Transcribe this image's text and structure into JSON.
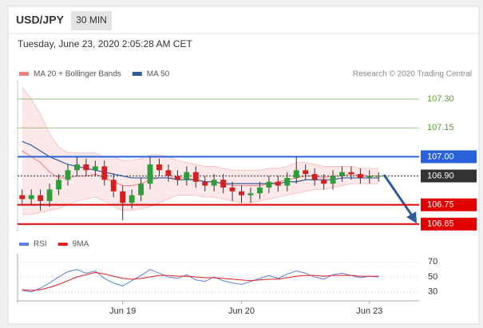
{
  "header": {
    "symbol": "USD/JPY",
    "timeframe": "30 MIN",
    "timestamp": "Tuesday, June 23, 2020 2:05:28 AM CET"
  },
  "chart_data": [
    {
      "type": "candlestick",
      "ylim": [
        106.62,
        107.4
      ],
      "up_color": "#2e9e3a",
      "down_color": "#d62020",
      "open": [
        106.8,
        106.78,
        106.8,
        106.77,
        106.83,
        106.88,
        106.93,
        106.96,
        106.93,
        106.95,
        106.88,
        106.82,
        106.76,
        106.8,
        106.86,
        106.96,
        106.93,
        106.9,
        106.88,
        106.92,
        106.87,
        106.85,
        106.88,
        106.84,
        106.82,
        106.8,
        106.81,
        106.84,
        106.87,
        106.85,
        106.89,
        106.93,
        106.91,
        106.88,
        106.86,
        106.9,
        106.92,
        106.91,
        106.89,
        106.9
      ],
      "high": [
        106.83,
        106.83,
        106.83,
        106.86,
        106.91,
        106.96,
        107.0,
        106.99,
        106.98,
        106.98,
        106.91,
        106.85,
        106.83,
        106.89,
        107.0,
        106.99,
        106.96,
        106.93,
        106.95,
        106.95,
        106.9,
        106.91,
        106.91,
        106.87,
        106.85,
        106.84,
        106.87,
        106.9,
        106.9,
        106.92,
        107.0,
        106.96,
        106.94,
        106.91,
        106.93,
        106.95,
        106.95,
        106.94,
        106.93,
        106.92
      ],
      "low": [
        106.75,
        106.75,
        106.72,
        106.74,
        106.8,
        106.85,
        106.9,
        106.9,
        106.9,
        106.85,
        106.79,
        106.67,
        106.73,
        106.77,
        106.83,
        106.9,
        106.87,
        106.85,
        106.85,
        106.84,
        106.82,
        106.82,
        106.81,
        106.77,
        106.76,
        106.76,
        106.78,
        106.81,
        106.82,
        106.82,
        106.86,
        106.88,
        106.85,
        106.83,
        106.83,
        106.87,
        106.88,
        106.86,
        106.86,
        106.87
      ],
      "close": [
        106.78,
        106.8,
        106.77,
        106.83,
        106.88,
        106.93,
        106.96,
        106.93,
        106.95,
        106.88,
        106.82,
        106.76,
        106.8,
        106.86,
        106.96,
        106.93,
        106.9,
        106.88,
        106.92,
        106.87,
        106.85,
        106.88,
        106.84,
        106.82,
        106.8,
        106.81,
        106.84,
        106.87,
        106.85,
        106.89,
        106.93,
        106.91,
        106.88,
        106.86,
        106.9,
        106.92,
        106.91,
        106.89,
        106.9,
        106.9
      ],
      "bands": {
        "name": "MA 20 + Bollinger Bands",
        "color": "#f08080",
        "upper": [
          107.36,
          107.3,
          107.22,
          107.12,
          107.05,
          107.02,
          107.02,
          107.02,
          107.02,
          107.0,
          107.0,
          106.98,
          106.98,
          106.99,
          107.01,
          107.01,
          107.0,
          106.98,
          106.97,
          106.96,
          106.95,
          106.95,
          106.94,
          106.93,
          106.93,
          106.93,
          106.93,
          106.94,
          106.94,
          106.95,
          106.97,
          106.97,
          106.96,
          106.95,
          106.95,
          106.95,
          106.95,
          106.94,
          106.94,
          106.94
        ],
        "middle": [
          107.03,
          107.0,
          106.97,
          106.92,
          106.89,
          106.89,
          106.9,
          106.9,
          106.91,
          106.89,
          106.87,
          106.85,
          106.85,
          106.86,
          106.88,
          106.89,
          106.89,
          106.89,
          106.89,
          106.88,
          106.87,
          106.87,
          106.86,
          106.85,
          106.85,
          106.85,
          106.85,
          106.86,
          106.87,
          106.88,
          106.89,
          106.9,
          106.9,
          106.89,
          106.9,
          106.9,
          106.91,
          106.9,
          106.9,
          106.9
        ],
        "lower": [
          106.7,
          106.7,
          106.71,
          106.72,
          106.73,
          106.75,
          106.77,
          106.78,
          106.79,
          106.77,
          106.74,
          106.72,
          106.72,
          106.73,
          106.74,
          106.76,
          106.78,
          106.8,
          106.8,
          106.8,
          106.79,
          106.79,
          106.78,
          106.77,
          106.76,
          106.76,
          106.77,
          106.78,
          106.79,
          106.8,
          106.81,
          106.82,
          106.83,
          106.83,
          106.84,
          106.85,
          106.86,
          106.86,
          106.86,
          106.86
        ]
      },
      "series": [
        {
          "name": "MA 50",
          "color": "#2f5c9e",
          "values": [
            107.08,
            107.06,
            107.03,
            107.0,
            106.98,
            106.96,
            106.95,
            106.94,
            106.93,
            106.92,
            106.91,
            106.9,
            106.89,
            106.89,
            106.89,
            106.89,
            106.89,
            106.88,
            106.88,
            106.88,
            106.87,
            106.87,
            106.86,
            106.86,
            106.86,
            106.86,
            106.86,
            106.86,
            106.86,
            106.87,
            106.87,
            106.88,
            106.88,
            106.88,
            106.88,
            106.89,
            106.89,
            106.89,
            106.89,
            106.89
          ]
        }
      ],
      "levels": [
        {
          "value": 107.3,
          "label": "107.30",
          "color": "#5aa02c",
          "boxed": false,
          "dashed": false
        },
        {
          "value": 107.15,
          "label": "107.15",
          "color": "#5aa02c",
          "boxed": false,
          "dashed": false
        },
        {
          "value": 107.0,
          "label": "107.00",
          "color": "#2962d9",
          "boxed": true,
          "dashed": false
        },
        {
          "value": 106.9,
          "label": "106.90",
          "color": "#333333",
          "boxed": true,
          "dashed": true
        },
        {
          "value": 106.75,
          "label": "106.75",
          "color": "#e00000",
          "boxed": true,
          "dashed": false
        },
        {
          "value": 106.65,
          "label": "106.65",
          "color": "#e00000",
          "boxed": true,
          "dashed": false
        }
      ],
      "source": "Research © 2020 Trading Central"
    },
    {
      "type": "line",
      "categories": [
        null,
        null,
        null,
        null,
        null,
        null,
        null,
        null,
        null,
        null,
        null,
        "Jun 19",
        null,
        null,
        null,
        null,
        null,
        null,
        null,
        null,
        null,
        null,
        null,
        null,
        "Jun 20",
        null,
        null,
        null,
        null,
        null,
        null,
        null,
        null,
        null,
        null,
        null,
        null,
        null,
        "Jun 23",
        null
      ],
      "ylim": [
        18,
        81
      ],
      "yticks": [
        30,
        50,
        70
      ],
      "series": [
        {
          "name": "RSI",
          "color": "#5b7fe0",
          "values": [
            32,
            30,
            35,
            42,
            50,
            57,
            60,
            55,
            58,
            48,
            42,
            38,
            45,
            52,
            60,
            55,
            50,
            48,
            53,
            46,
            44,
            50,
            45,
            42,
            40,
            44,
            48,
            52,
            48,
            54,
            58,
            55,
            50,
            47,
            53,
            55,
            52,
            49,
            51,
            50
          ]
        },
        {
          "name": "9MA",
          "color": "#e02020",
          "values": [
            33,
            32,
            33,
            36,
            40,
            45,
            50,
            53,
            56,
            54,
            51,
            48,
            47,
            48,
            50,
            52,
            52,
            51,
            51,
            50,
            49,
            49,
            48,
            47,
            46,
            45,
            46,
            47,
            47,
            49,
            51,
            52,
            52,
            51,
            52,
            52,
            52,
            51,
            51,
            51
          ]
        }
      ]
    }
  ]
}
